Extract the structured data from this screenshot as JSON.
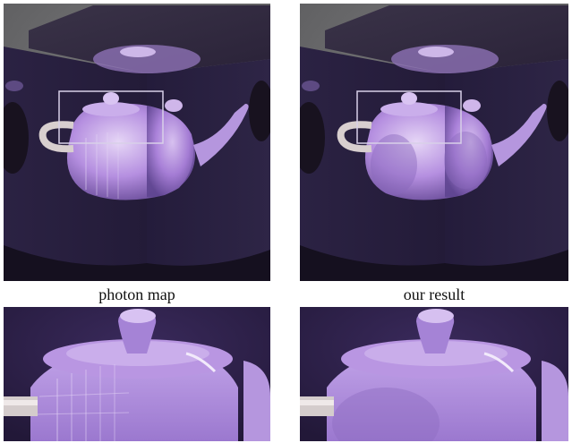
{
  "captions": {
    "left": "photon map",
    "right": "our result"
  },
  "colors": {
    "background": "#6e6e70",
    "cube_dark": "#241c3a",
    "teapot_light": "#cfb6ea",
    "highlight_box": "#d8d0e8"
  },
  "panels": [
    {
      "id": "photon-map-render",
      "method": "photon map",
      "view": "full"
    },
    {
      "id": "our-result-render",
      "method": "our result",
      "view": "full"
    },
    {
      "id": "photon-map-closeup",
      "method": "photon map",
      "view": "closeup"
    },
    {
      "id": "our-result-closeup",
      "method": "our result",
      "view": "closeup"
    }
  ]
}
